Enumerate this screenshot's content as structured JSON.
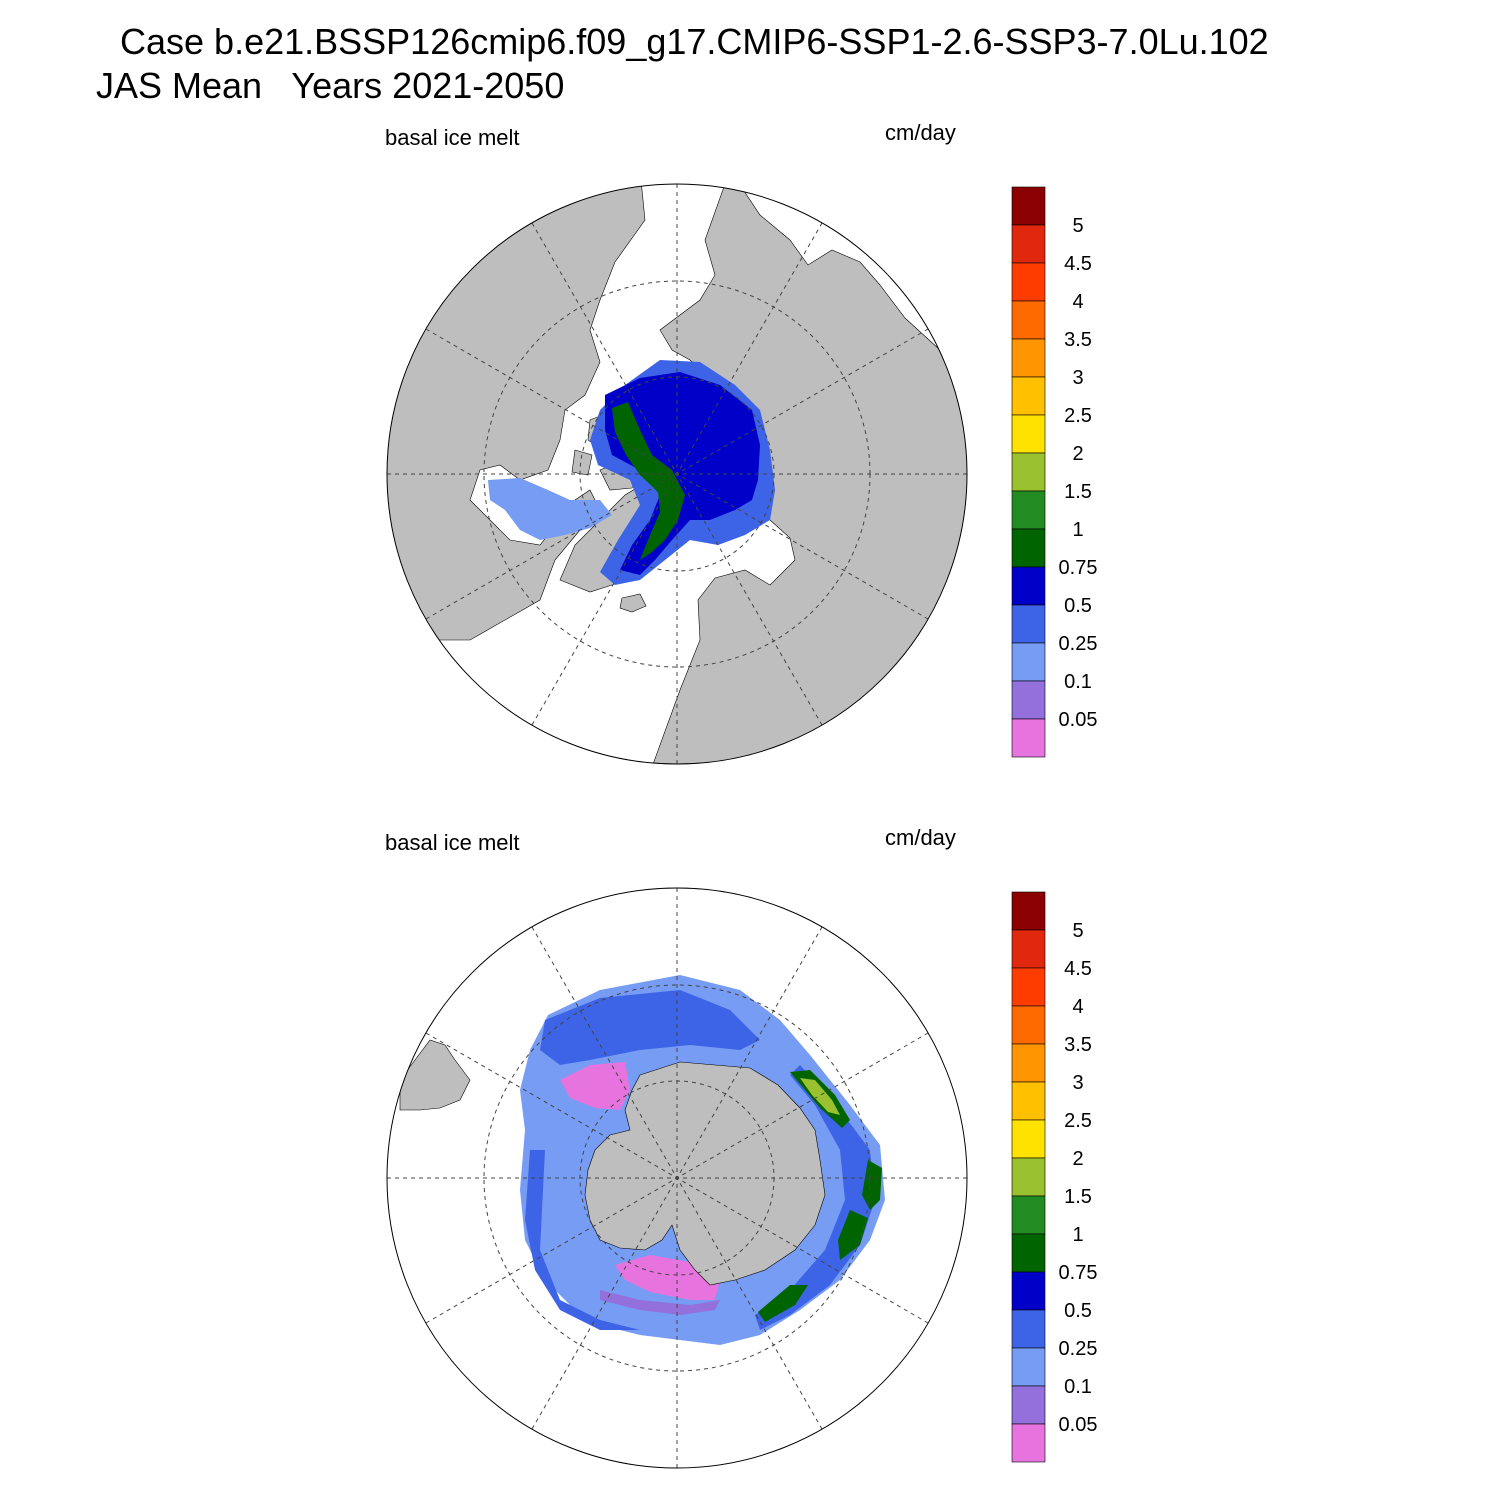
{
  "header": {
    "line1": "Case b.e21.BSSP126cmip6.f09_g17.CMIP6-SSP1-2.6-SSP3-7.0Lu.102",
    "line2": "JAS Mean   Years 2021-2050"
  },
  "panels": [
    {
      "id": "north",
      "hemisphere": "Northern Hemisphere",
      "left_label": "basal ice melt",
      "right_label": "cm/day"
    },
    {
      "id": "south",
      "hemisphere": "Southern Hemisphere",
      "left_label": "basal ice melt",
      "right_label": "cm/day"
    }
  ],
  "colorbar": {
    "levels": [
      "0.05",
      "0.1",
      "0.25",
      "0.5",
      "0.75",
      "1",
      "1.5",
      "2",
      "2.5",
      "3",
      "3.5",
      "4",
      "4.5",
      "5"
    ],
    "colors": [
      "#e774de",
      "#9370db",
      "#779cf3",
      "#3d64e6",
      "#0000c8",
      "#006400",
      "#228b22",
      "#9ac12f",
      "#ffe200",
      "#ffc000",
      "#ff9500",
      "#ff6a00",
      "#ff3c00",
      "#e0280f",
      "#8b0000"
    ]
  },
  "map_colors": {
    "land": "#bebebe",
    "ocean": "#ffffff",
    "grid": "#555555"
  },
  "chart_data": [
    {
      "type": "map",
      "title": "basal ice melt",
      "units": "cm/day",
      "region": "Arctic (north polar stereographic)",
      "contour_levels": [
        0.05,
        0.1,
        0.25,
        0.5,
        0.75,
        1,
        1.5,
        2,
        2.5,
        3,
        3.5,
        4,
        4.5,
        5
      ],
      "observed_range": "mostly 0.25–0.75 over central Arctic; 0.75–1.5 along the Canadian/Greenland side"
    },
    {
      "type": "map",
      "title": "basal ice melt",
      "units": "cm/day",
      "region": "Antarctic (south polar stereographic)",
      "contour_levels": [
        0.05,
        0.1,
        0.25,
        0.5,
        0.75,
        1,
        1.5,
        2,
        2.5,
        3,
        3.5,
        4,
        4.5,
        5
      ],
      "observed_range": "mostly 0.05–0.5 around the ice pack; 0.75–2 in bands on the Indian/Pacific sector edge"
    }
  ]
}
